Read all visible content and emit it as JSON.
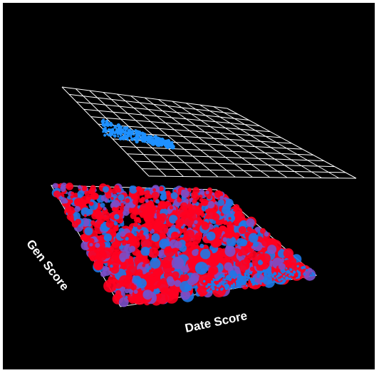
{
  "chart_data": {
    "type": "scatter",
    "xlabel": "Date Score",
    "ylabel": "Gen Score",
    "grid": true,
    "colors": {
      "background": "#000000",
      "grid": "#ffffff",
      "projection_points": "#1e90ff",
      "series_red": "#ff0020",
      "series_blue": "#1e78e6",
      "series_purple": "#7a4ec8"
    }
  }
}
